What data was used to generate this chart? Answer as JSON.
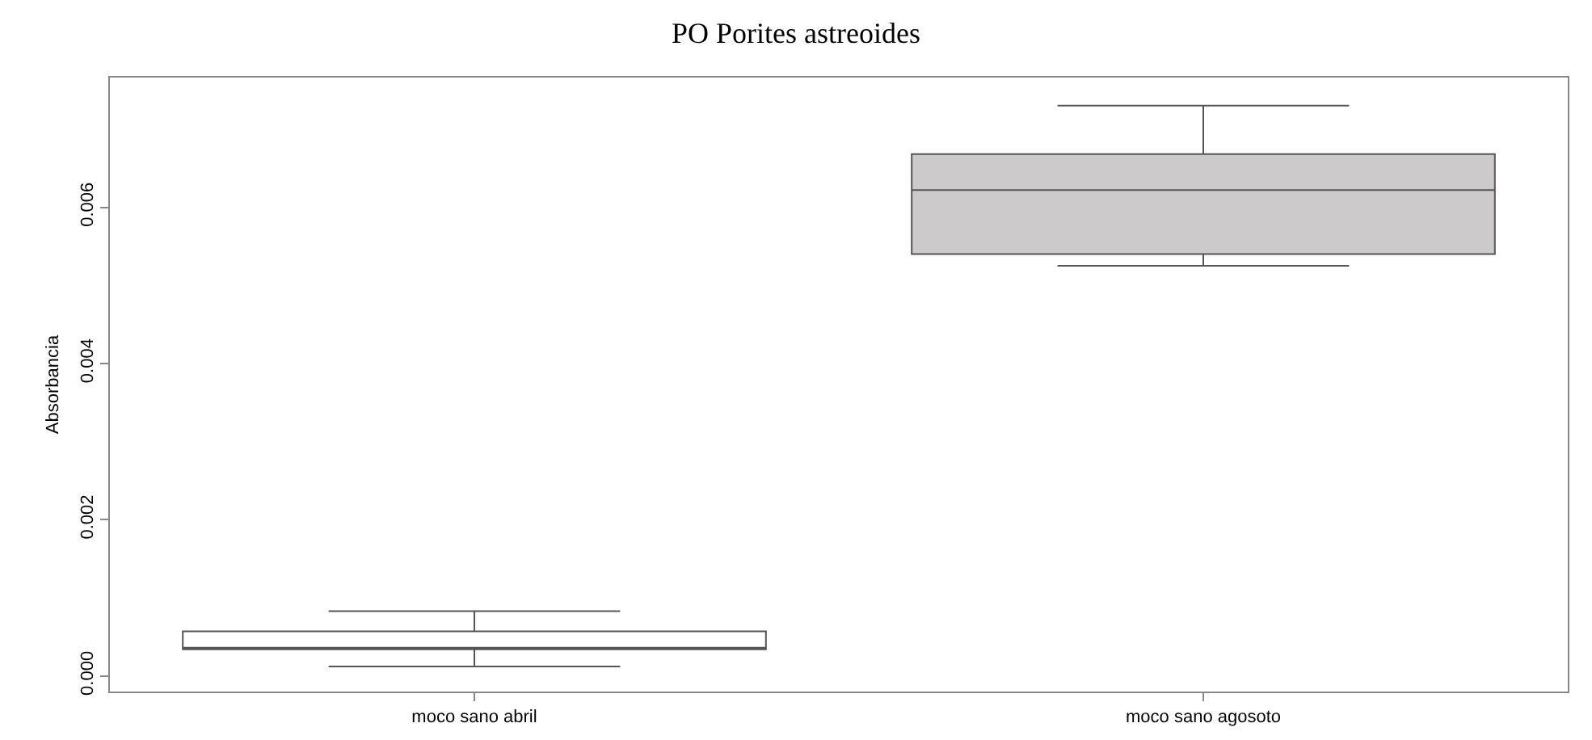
{
  "chart_data": {
    "type": "box",
    "title": "PO Porites astreoides",
    "ylabel": "Absorbancia",
    "categories": [
      "moco sano abril",
      "moco sano agosoto"
    ],
    "boxes": [
      {
        "low": 0.00012,
        "q1": 0.00034,
        "median": 0.00035,
        "q3": 0.00057,
        "high": 0.00083
      },
      {
        "low": 0.00525,
        "q1": 0.0054,
        "median": 0.00622,
        "q3": 0.00668,
        "high": 0.0073
      }
    ],
    "colors": [
      "#ffffff",
      "#cccaca"
    ],
    "ylim": [
      -0.0002,
      0.00766
    ],
    "yticks": [
      {
        "value": 0,
        "label": "0.000"
      },
      {
        "value": 0.002,
        "label": "0.002"
      },
      {
        "value": 0.004,
        "label": "0.004"
      },
      {
        "value": 0.006,
        "label": "0.006"
      }
    ],
    "grid": false,
    "legend": false
  }
}
